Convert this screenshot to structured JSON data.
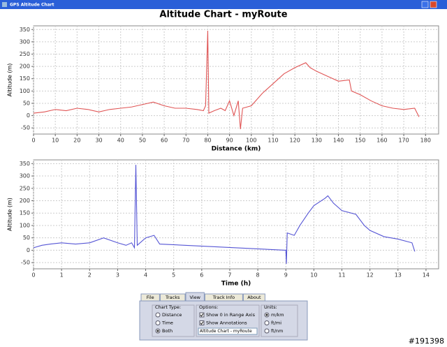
{
  "window": {
    "title": "GPS Altitude Chart"
  },
  "chart_data": [
    {
      "type": "line",
      "title": "Altitude Chart - myRoute",
      "xlabel": "Distance (km)",
      "ylabel": "Altitude (m)",
      "x": [
        0,
        5,
        10,
        15,
        20,
        25,
        30,
        35,
        40,
        45,
        50,
        55,
        60,
        65,
        70,
        75,
        78,
        79,
        80,
        80.5,
        83,
        86,
        88,
        90,
        92,
        94,
        95,
        96,
        100,
        105,
        110,
        115,
        120,
        125,
        127,
        130,
        135,
        140,
        145,
        146,
        150,
        155,
        160,
        165,
        170,
        175,
        177
      ],
      "series": [
        {
          "color": "#e05555",
          "values": [
            10,
            15,
            25,
            20,
            30,
            25,
            15,
            25,
            30,
            35,
            45,
            55,
            40,
            30,
            30,
            25,
            20,
            40,
            345,
            10,
            20,
            30,
            20,
            60,
            0,
            60,
            -55,
            30,
            40,
            90,
            130,
            170,
            195,
            215,
            195,
            180,
            160,
            140,
            145,
            100,
            85,
            60,
            40,
            30,
            25,
            30,
            -5
          ]
        }
      ],
      "xlim": [
        0,
        186
      ],
      "ylim": [
        -75,
        365
      ],
      "xticks": [
        0,
        10,
        20,
        30,
        40,
        50,
        60,
        70,
        80,
        90,
        100,
        110,
        120,
        130,
        140,
        150,
        160,
        170,
        180
      ],
      "yticks": [
        -50,
        0,
        50,
        100,
        150,
        200,
        250,
        300,
        350
      ],
      "grid": true
    },
    {
      "type": "line",
      "xlabel": "Time (h)",
      "ylabel": "Altitude (m)",
      "x": [
        0,
        0.3,
        0.6,
        1,
        1.5,
        2,
        2.5,
        3,
        3.3,
        3.5,
        3.6,
        3.65,
        3.7,
        4,
        4.3,
        4.5,
        9,
        9.02,
        9.05,
        9.3,
        9.5,
        9.8,
        10,
        10.4,
        10.5,
        10.7,
        11,
        11.5,
        11.8,
        12,
        12.5,
        13,
        13.5,
        13.6
      ],
      "series": [
        {
          "color": "#5555d5",
          "values": [
            10,
            20,
            25,
            30,
            25,
            30,
            50,
            30,
            20,
            30,
            10,
            345,
            20,
            50,
            60,
            25,
            0,
            -55,
            70,
            60,
            100,
            150,
            180,
            210,
            220,
            190,
            160,
            145,
            100,
            80,
            55,
            45,
            30,
            -5
          ]
        }
      ],
      "xlim": [
        0,
        14.45
      ],
      "ylim": [
        -75,
        365
      ],
      "xticks": [
        0,
        1,
        2,
        3,
        4,
        5,
        6,
        7,
        8,
        9,
        10,
        11,
        12,
        13,
        14
      ],
      "yticks": [
        -50,
        0,
        50,
        100,
        150,
        200,
        250,
        300,
        350
      ],
      "grid": true
    }
  ],
  "controls": {
    "tabs": [
      "File",
      "Tracks",
      "View",
      "Track Info",
      "About"
    ],
    "active_tab": 2,
    "chart_type": {
      "title": "Chart Type:",
      "options": [
        "Distance",
        "Time",
        "Both"
      ],
      "selected": 2
    },
    "options": {
      "title": "Options:",
      "checks": [
        "Show 0 in Range Axis",
        "Show Annotations"
      ],
      "field": "Altitude Chart - myRoute"
    },
    "units": {
      "title": "Units:",
      "options": [
        "m/km",
        "ft/mi",
        "ft/nm"
      ],
      "selected": 0
    }
  },
  "watermark": "#191398"
}
